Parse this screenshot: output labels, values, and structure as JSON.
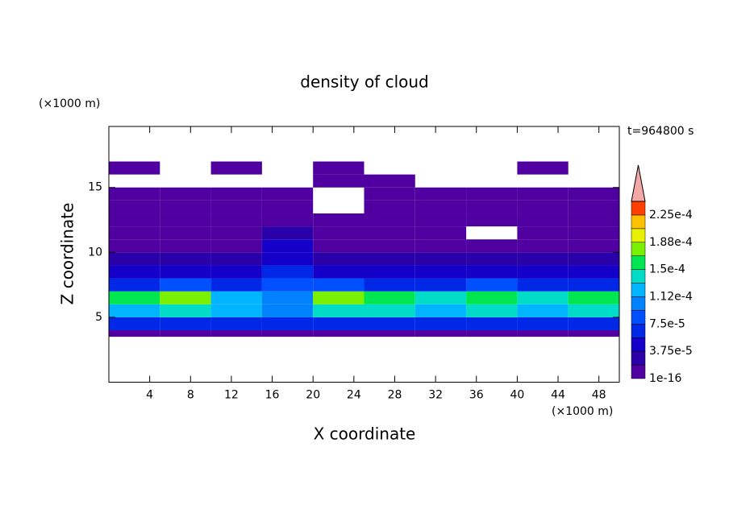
{
  "chart_data": {
    "type": "contour",
    "title": "density of cloud",
    "xlabel": "X coordinate",
    "ylabel": "Z coordinate",
    "x_unit": "(×1000 m)",
    "y_unit": "(×1000 m)",
    "annotation": "t=964800 s",
    "xlim": [
      0,
      50
    ],
    "ylim": [
      0,
      19.7
    ],
    "xticks": [
      4,
      8,
      12,
      16,
      20,
      24,
      28,
      32,
      36,
      40,
      44,
      48
    ],
    "yticks": [
      5,
      10,
      15
    ],
    "x": [
      0,
      5,
      10,
      15,
      20,
      25,
      30,
      35,
      40,
      45,
      50
    ],
    "z": [
      3.5,
      4,
      5,
      6,
      7,
      8,
      9,
      10,
      11,
      12,
      13,
      14,
      15,
      16,
      17
    ],
    "field": [
      [
        1e-05,
        1e-05,
        1e-05,
        1e-05,
        1e-05,
        1e-05,
        1e-05,
        1e-05,
        1e-05,
        1e-05
      ],
      [
        6e-05,
        6e-05,
        6e-05,
        7e-05,
        6e-05,
        6e-05,
        6e-05,
        6e-05,
        6e-05,
        6e-05
      ],
      [
        0.00013,
        0.00014,
        0.00012,
        0.00011,
        0.00014,
        0.00014,
        0.00013,
        0.00014,
        0.00013,
        0.00014
      ],
      [
        0.00015,
        0.00017,
        0.00012,
        0.00011,
        0.00017,
        0.00016,
        0.00014,
        0.00016,
        0.00014,
        0.00016
      ],
      [
        7e-05,
        8e-05,
        6e-05,
        9e-05,
        8e-05,
        7e-05,
        7e-05,
        9e-05,
        7e-05,
        7e-05
      ],
      [
        4e-05,
        4e-05,
        4e-05,
        7e-05,
        4e-05,
        4e-05,
        4e-05,
        4e-05,
        4e-05,
        4e-05
      ],
      [
        2.5e-05,
        2.5e-05,
        2.5e-05,
        5e-05,
        2.5e-05,
        2.5e-05,
        2.5e-05,
        2.5e-05,
        2.5e-05,
        2.5e-05
      ],
      [
        1.5e-05,
        1.5e-05,
        1.5e-05,
        4e-05,
        1.5e-05,
        1.5e-05,
        1.5e-05,
        1.5e-05,
        1.5e-05,
        1.5e-05
      ],
      [
        1e-05,
        1e-05,
        1e-05,
        2e-05,
        1e-05,
        1e-05,
        1e-05,
        null,
        1e-05,
        1e-05
      ],
      [
        5e-06,
        5e-06,
        5e-06,
        1e-05,
        5e-06,
        5e-06,
        5e-06,
        5e-06,
        5e-06,
        5e-06
      ],
      [
        5e-06,
        5e-06,
        5e-06,
        5e-06,
        null,
        5e-06,
        5e-06,
        5e-06,
        5e-06,
        5e-06
      ],
      [
        3e-06,
        3e-06,
        3e-06,
        3e-06,
        null,
        3e-06,
        3e-06,
        3e-06,
        3e-06,
        3e-06
      ],
      [
        null,
        null,
        null,
        null,
        5e-06,
        5e-06,
        null,
        null,
        null,
        null
      ],
      [
        3e-06,
        null,
        3e-06,
        null,
        3e-06,
        null,
        null,
        null,
        3e-06,
        null
      ]
    ],
    "levels": [
      {
        "value": 1e-16,
        "label": "1e-16"
      },
      {
        "value": 1.875e-05,
        "label": null
      },
      {
        "value": 3.75e-05,
        "label": "3.75e-5"
      },
      {
        "value": 5.625e-05,
        "label": null
      },
      {
        "value": 7.5e-05,
        "label": "7.5e-5"
      },
      {
        "value": 9.375e-05,
        "label": null
      },
      {
        "value": 0.0001125,
        "label": "1.12e-4"
      },
      {
        "value": 0.00013125,
        "label": null
      },
      {
        "value": 0.00015,
        "label": "1.5e-4"
      },
      {
        "value": 0.00016875,
        "label": null
      },
      {
        "value": 0.0001875,
        "label": "1.88e-4"
      },
      {
        "value": 0.00020625,
        "label": null
      },
      {
        "value": 0.000225,
        "label": "2.25e-4"
      },
      {
        "value": 0.00024375,
        "label": null
      }
    ],
    "colors": [
      "#5000a0",
      "#2a00a8",
      "#1400c8",
      "#0028e6",
      "#0050ff",
      "#0082ff",
      "#00b4ff",
      "#00dcc8",
      "#00e650",
      "#78f000",
      "#e6f000",
      "#ffc000",
      "#ff4000"
    ],
    "extend_color": "#f4a8a8"
  }
}
